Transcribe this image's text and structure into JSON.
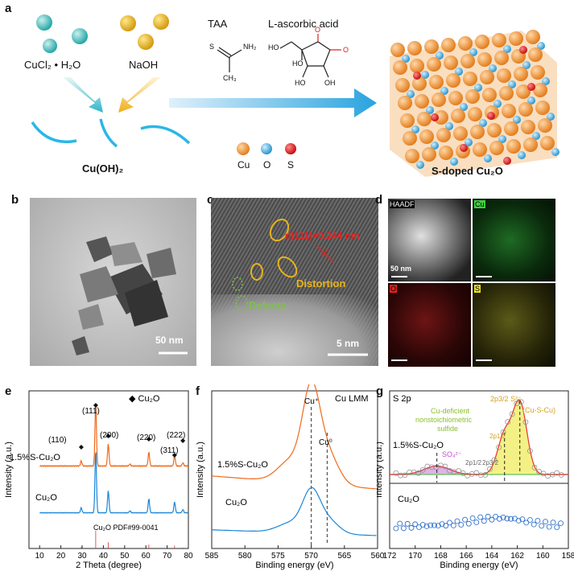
{
  "panel_a": {
    "label": "a",
    "reagent_left": "CuCl₂ • H₂O",
    "reagent_right": "NaOH",
    "product_left": "Cu(OH)₂",
    "reagent_taa": "TAA",
    "reagent_ascorbic": "L-ascorbic acid",
    "legend": [
      "Cu",
      "O",
      "S"
    ],
    "product_right": "S-doped Cu₂O",
    "taa_atoms": {
      "s": "S",
      "nh2": "NH₂",
      "ch3": "CH₃"
    },
    "asc_atoms": {
      "ho1": "HO",
      "ho2": "HO",
      "ho3": "HO",
      "oh": "OH",
      "o": "O",
      "o2": "O"
    },
    "colors": {
      "cu": "#f0963a",
      "o": "#4fb3e0",
      "s": "#d61d1d",
      "teal": "#3cb8b8",
      "gold": "#e6b21e"
    }
  },
  "panel_b": {
    "label": "b",
    "scale": "50 nm"
  },
  "panel_c": {
    "label": "c",
    "d_spacing": "d(111)=0.244 nm",
    "distortion": "Distortion",
    "defects": "Defects",
    "scale": "5 nm"
  },
  "panel_d": {
    "label": "d",
    "maps": [
      "HAADF",
      "Cu",
      "O",
      "S"
    ],
    "scale": "50 nm"
  },
  "panel_e": {
    "label": "e",
    "legend": "◆ Cu₂O",
    "peaks": [
      "(111)",
      "(110)",
      "(200)",
      "(220)",
      "(311)",
      "(222)"
    ],
    "sample1": "1.5%S-Cu₂O",
    "sample2": "Cu₂O",
    "reference": "Cu₂O PDF#99-0041",
    "xlabel": "2 Theta (degree)",
    "ylabel": "Intensity (a.u.)",
    "xticks": [
      "10",
      "20",
      "30",
      "40",
      "50",
      "60",
      "70",
      "80"
    ]
  },
  "panel_f": {
    "label": "f",
    "title": "Cu LMM",
    "cu_plus": "Cu⁺",
    "cu_0": "Cu⁰",
    "sample1": "1.5%S-Cu₂O",
    "sample2": "Cu₂O",
    "xlabel": "Binding energy (eV)",
    "ylabel": "Intensity (a.u.)",
    "xticks": [
      "585",
      "580",
      "575",
      "570",
      "565",
      "560"
    ]
  },
  "panel_g": {
    "label": "g",
    "title": "S 2p",
    "annot": [
      "Cu-deficient",
      "nonstoichiometric",
      "sulfide"
    ],
    "so4": "SO₄²⁻",
    "s2p32": "2p3/2 S²⁻",
    "cus": "(Cu-S-Cu)",
    "s2p12": "2p1/2",
    "s2p_low": "2p1/2",
    "s2p_low2": "2p3/2",
    "sample1": "1.5%S-Cu₂O",
    "sample2": "Cu₂O",
    "xlabel": "Binding energy (eV)",
    "ylabel": "Intensity (a.u.)",
    "xticks": [
      "172",
      "170",
      "168",
      "166",
      "164",
      "162",
      "160",
      "158"
    ]
  }
}
